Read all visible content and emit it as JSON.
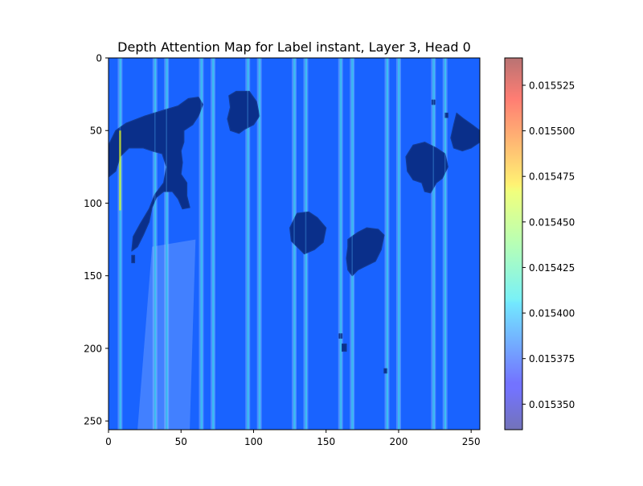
{
  "chart_data": {
    "type": "heatmap",
    "title": "Depth Attention Map for Label instant, Layer 3, Head 0",
    "xlabel": "",
    "ylabel": "",
    "xlim": [
      0,
      256
    ],
    "ylim": [
      256,
      0
    ],
    "x_ticks": [
      0,
      50,
      100,
      150,
      200,
      250
    ],
    "y_ticks": [
      0,
      50,
      100,
      150,
      200,
      250
    ],
    "colorbar": {
      "min": 0.015336,
      "max": 0.01554,
      "ticks": [
        "0.015350",
        "0.015375",
        "0.015400",
        "0.015425",
        "0.015450",
        "0.015475",
        "0.015500",
        "0.015525"
      ],
      "tick_values": [
        0.01535,
        0.015375,
        0.0154,
        0.015425,
        0.01545,
        0.015475,
        0.0155,
        0.015525
      ],
      "colormap": "jet"
    },
    "base_value": 0.015378,
    "bright_columns": {
      "value": 0.015405,
      "x": [
        8,
        32,
        40,
        64,
        72,
        96,
        104,
        128,
        136,
        160,
        168,
        192,
        200,
        224,
        232
      ]
    },
    "dark_regions": [
      {
        "name": "left-large-region",
        "points": [
          [
            0,
            60
          ],
          [
            5,
            50
          ],
          [
            12,
            45
          ],
          [
            25,
            40
          ],
          [
            38,
            36
          ],
          [
            48,
            33
          ],
          [
            55,
            28
          ],
          [
            62,
            27
          ],
          [
            65,
            32
          ],
          [
            62,
            40
          ],
          [
            58,
            46
          ],
          [
            52,
            50
          ],
          [
            52,
            58
          ],
          [
            50,
            64
          ],
          [
            51,
            72
          ],
          [
            50,
            80
          ],
          [
            54,
            86
          ],
          [
            54,
            95
          ],
          [
            56,
            103
          ],
          [
            51,
            104
          ],
          [
            48,
            97
          ],
          [
            44,
            92
          ],
          [
            38,
            92
          ],
          [
            33,
            96
          ],
          [
            30,
            103
          ],
          [
            28,
            113
          ],
          [
            24,
            122
          ],
          [
            20,
            130
          ],
          [
            16,
            133
          ],
          [
            17,
            123
          ],
          [
            22,
            114
          ],
          [
            28,
            104
          ],
          [
            32,
            94
          ],
          [
            38,
            86
          ],
          [
            40,
            75
          ],
          [
            37,
            66
          ],
          [
            30,
            64
          ],
          [
            24,
            62
          ],
          [
            14,
            62
          ],
          [
            8,
            68
          ],
          [
            5,
            78
          ],
          [
            0,
            82
          ]
        ]
      },
      {
        "name": "top-middle-region",
        "points": [
          [
            83,
            26
          ],
          [
            88,
            23
          ],
          [
            97,
            23
          ],
          [
            102,
            30
          ],
          [
            104,
            40
          ],
          [
            100,
            46
          ],
          [
            94,
            49
          ],
          [
            90,
            52
          ],
          [
            84,
            50
          ],
          [
            82,
            42
          ],
          [
            84,
            34
          ]
        ]
      },
      {
        "name": "right-edge-region",
        "points": [
          [
            240,
            38
          ],
          [
            245,
            42
          ],
          [
            252,
            47
          ],
          [
            256,
            50
          ],
          [
            256,
            58
          ],
          [
            250,
            62
          ],
          [
            244,
            64
          ],
          [
            238,
            62
          ],
          [
            236,
            55
          ],
          [
            238,
            46
          ]
        ]
      },
      {
        "name": "right-middle-region",
        "points": [
          [
            210,
            60
          ],
          [
            218,
            58
          ],
          [
            226,
            62
          ],
          [
            232,
            66
          ],
          [
            234,
            75
          ],
          [
            230,
            83
          ],
          [
            226,
            86
          ],
          [
            222,
            93
          ],
          [
            218,
            92
          ],
          [
            216,
            86
          ],
          [
            210,
            84
          ],
          [
            206,
            78
          ],
          [
            205,
            68
          ]
        ]
      },
      {
        "name": "center-blob-region",
        "points": [
          [
            125,
            117
          ],
          [
            130,
            107
          ],
          [
            138,
            106
          ],
          [
            144,
            110
          ],
          [
            150,
            117
          ],
          [
            148,
            127
          ],
          [
            142,
            132
          ],
          [
            135,
            135
          ],
          [
            130,
            130
          ],
          [
            126,
            126
          ]
        ]
      },
      {
        "name": "lower-center-region",
        "points": [
          [
            165,
            125
          ],
          [
            172,
            120
          ],
          [
            178,
            117
          ],
          [
            186,
            118
          ],
          [
            190,
            122
          ],
          [
            188,
            132
          ],
          [
            184,
            140
          ],
          [
            178,
            143
          ],
          [
            172,
            146
          ],
          [
            168,
            150
          ],
          [
            165,
            146
          ],
          [
            164,
            138
          ],
          [
            165,
            130
          ]
        ]
      },
      {
        "name": "small-dot-1",
        "points": [
          [
            223,
            29
          ],
          [
            225,
            29
          ],
          [
            225,
            32
          ],
          [
            223,
            32
          ]
        ]
      },
      {
        "name": "small-dot-2",
        "points": [
          [
            232,
            38
          ],
          [
            234,
            38
          ],
          [
            234,
            41
          ],
          [
            232,
            41
          ]
        ]
      },
      {
        "name": "small-dot-3",
        "points": [
          [
            16,
            136
          ],
          [
            18,
            136
          ],
          [
            18,
            141
          ],
          [
            16,
            141
          ]
        ]
      },
      {
        "name": "small-dot-4",
        "points": [
          [
            159,
            190
          ],
          [
            161,
            190
          ],
          [
            161,
            193
          ],
          [
            159,
            193
          ]
        ]
      },
      {
        "name": "small-dot-5",
        "points": [
          [
            161,
            197
          ],
          [
            164,
            197
          ],
          [
            164,
            202
          ],
          [
            161,
            202
          ]
        ]
      },
      {
        "name": "small-dot-6",
        "points": [
          [
            190,
            214
          ],
          [
            192,
            214
          ],
          [
            192,
            217
          ],
          [
            190,
            217
          ]
        ]
      }
    ],
    "dark_value": 0.015343,
    "warm_streak": {
      "x": 8,
      "y_range": [
        50,
        105
      ],
      "value": 0.01546
    }
  }
}
